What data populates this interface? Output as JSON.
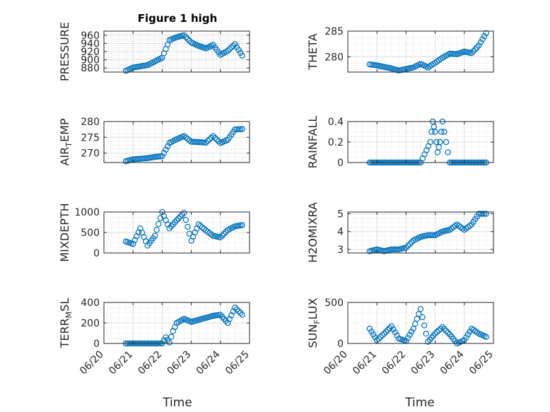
{
  "figure": {
    "title": "Figure 1 high"
  },
  "x_axis": {
    "label": "Time",
    "tick_labels": [
      "06/20",
      "06/21",
      "06/22",
      "06/23",
      "06/24",
      "06/25"
    ]
  },
  "colors": {
    "marker": "#0072BD",
    "axis": "#262626",
    "grid": "#dfdfdf",
    "background": "#ffffff"
  },
  "chart_data": [
    {
      "type": "scatter",
      "ylabel": {
        "main": "PRESSURE",
        "sub": ""
      },
      "ylim": [
        870,
        970
      ],
      "yticks": [
        880,
        900,
        920,
        940,
        960
      ],
      "x": [
        "06/20 18:00",
        "06/21 00:00",
        "06/21 06:00",
        "06/21 12:00",
        "06/21 18:00",
        "06/22 00:00",
        "06/22 06:00",
        "06/22 12:00",
        "06/22 18:00",
        "06/23 00:00",
        "06/23 06:00",
        "06/23 12:00",
        "06/23 18:00",
        "06/24 00:00",
        "06/24 06:00",
        "06/24 12:00",
        "06/24 18:00"
      ],
      "y": [
        873,
        881,
        884,
        887,
        896,
        905,
        948,
        955,
        960,
        942,
        934,
        928,
        936,
        912,
        922,
        938,
        910
      ]
    },
    {
      "type": "scatter",
      "ylabel": {
        "main": "THETA",
        "sub": ""
      },
      "ylim": [
        277,
        285
      ],
      "yticks": [
        280,
        285
      ],
      "x": [
        "06/20 18:00",
        "06/21 00:00",
        "06/21 06:00",
        "06/21 12:00",
        "06/21 18:00",
        "06/22 00:00",
        "06/22 06:00",
        "06/22 12:00",
        "06/22 18:00",
        "06/23 00:00",
        "06/23 06:00",
        "06/23 12:00",
        "06/23 18:00",
        "06/24 00:00",
        "06/24 06:00",
        "06/24 12:00",
        "06/24 18:00"
      ],
      "y": [
        278.5,
        278.3,
        278.0,
        277.7,
        277.3,
        277.6,
        277.9,
        278.6,
        277.9,
        278.8,
        279.8,
        280.6,
        280.5,
        281.0,
        280.7,
        282.2,
        284.6
      ]
    },
    {
      "type": "scatter",
      "ylabel": {
        "main": "AIR",
        "sub": "T",
        "rest": "EMP"
      },
      "ylim": [
        267,
        280
      ],
      "yticks": [
        270,
        275,
        280
      ],
      "x": [
        "06/20 18:00",
        "06/21 00:00",
        "06/21 06:00",
        "06/21 12:00",
        "06/21 18:00",
        "06/22 00:00",
        "06/22 06:00",
        "06/22 12:00",
        "06/22 18:00",
        "06/23 00:00",
        "06/23 06:00",
        "06/23 12:00",
        "06/23 18:00",
        "06/24 00:00",
        "06/24 06:00",
        "06/24 12:00",
        "06/24 18:00"
      ],
      "y": [
        267.4,
        268.0,
        268.2,
        268.4,
        268.8,
        269.0,
        273.2,
        274.4,
        275.4,
        273.6,
        273.5,
        273.3,
        275.4,
        273.2,
        274.2,
        277.5,
        277.6
      ]
    },
    {
      "type": "scatter",
      "ylabel": {
        "main": "RAINFALL",
        "sub": ""
      },
      "ylim": [
        0,
        0.4
      ],
      "yticks": [
        0,
        0.2,
        0.4
      ],
      "x": [
        "06/20 18:00",
        "06/21 00:00",
        "06/21 12:00",
        "06/22 00:00",
        "06/22 12:00",
        "06/22 20:00",
        "06/22 22:00",
        "06/23 00:00",
        "06/23 02:00",
        "06/23 04:00",
        "06/23 06:00",
        "06/23 12:00",
        "06/24 00:00",
        "06/24 12:00",
        "06/24 18:00"
      ],
      "y": [
        0,
        0,
        0,
        0,
        0,
        0.2,
        0.4,
        0.3,
        0.1,
        0.2,
        0.4,
        0,
        0,
        0,
        0
      ]
    },
    {
      "type": "scatter",
      "ylabel": {
        "main": "MIXDEPTH",
        "sub": ""
      },
      "ylim": [
        0,
        1000
      ],
      "yticks": [
        0,
        500,
        1000
      ],
      "x": [
        "06/20 18:00",
        "06/21 00:00",
        "06/21 06:00",
        "06/21 12:00",
        "06/21 18:00",
        "06/22 00:00",
        "06/22 06:00",
        "06/22 12:00",
        "06/22 18:00",
        "06/23 00:00",
        "06/23 06:00",
        "06/23 12:00",
        "06/23 18:00",
        "06/24 00:00",
        "06/24 06:00",
        "06/24 12:00",
        "06/24 18:00"
      ],
      "y": [
        280,
        220,
        600,
        180,
        420,
        1000,
        600,
        800,
        980,
        300,
        700,
        550,
        420,
        380,
        560,
        650,
        680
      ]
    },
    {
      "type": "scatter",
      "ylabel": {
        "main": "H2OMIXRA",
        "sub": ""
      },
      "ylim": [
        2.8,
        5.1
      ],
      "yticks": [
        3,
        4,
        5
      ],
      "x": [
        "06/20 18:00",
        "06/21 00:00",
        "06/21 06:00",
        "06/21 12:00",
        "06/21 18:00",
        "06/22 00:00",
        "06/22 06:00",
        "06/22 12:00",
        "06/22 18:00",
        "06/23 00:00",
        "06/23 06:00",
        "06/23 12:00",
        "06/23 18:00",
        "06/24 00:00",
        "06/24 06:00",
        "06/24 12:00",
        "06/24 18:00"
      ],
      "y": [
        2.9,
        3.0,
        2.9,
        3.0,
        3.0,
        3.1,
        3.5,
        3.7,
        3.8,
        3.8,
        4.0,
        4.1,
        4.4,
        4.1,
        4.4,
        5.0,
        5.0
      ]
    },
    {
      "type": "scatter",
      "ylabel": {
        "main": "TERR",
        "sub": "M",
        "rest": "SL"
      },
      "ylim": [
        0,
        400
      ],
      "yticks": [
        0,
        200,
        400
      ],
      "x": [
        "06/20 18:00",
        "06/21 00:00",
        "06/21 12:00",
        "06/22 00:00",
        "06/22 03:00",
        "06/22 06:00",
        "06/22 09:00",
        "06/22 12:00",
        "06/22 18:00",
        "06/23 00:00",
        "06/23 06:00",
        "06/23 12:00",
        "06/23 18:00",
        "06/24 00:00",
        "06/24 06:00",
        "06/24 12:00",
        "06/24 18:00"
      ],
      "y": [
        0,
        0,
        0,
        0,
        60,
        10,
        120,
        200,
        240,
        210,
        230,
        250,
        270,
        280,
        200,
        350,
        280
      ]
    },
    {
      "type": "scatter",
      "ylabel": {
        "main": "SUN",
        "sub": "F",
        "rest": "LUX"
      },
      "ylim": [
        0,
        500
      ],
      "yticks": [
        0,
        500
      ],
      "x": [
        "06/20 18:00",
        "06/21 00:00",
        "06/21 06:00",
        "06/21 12:00",
        "06/21 18:00",
        "06/22 00:00",
        "06/22 06:00",
        "06/22 12:00",
        "06/22 18:00",
        "06/23 00:00",
        "06/23 06:00",
        "06/23 12:00",
        "06/23 18:00",
        "06/24 00:00",
        "06/24 06:00",
        "06/24 12:00",
        "06/24 18:00"
      ],
      "y": [
        180,
        40,
        120,
        210,
        60,
        30,
        180,
        420,
        20,
        120,
        200,
        110,
        0,
        40,
        180,
        120,
        80
      ]
    }
  ]
}
